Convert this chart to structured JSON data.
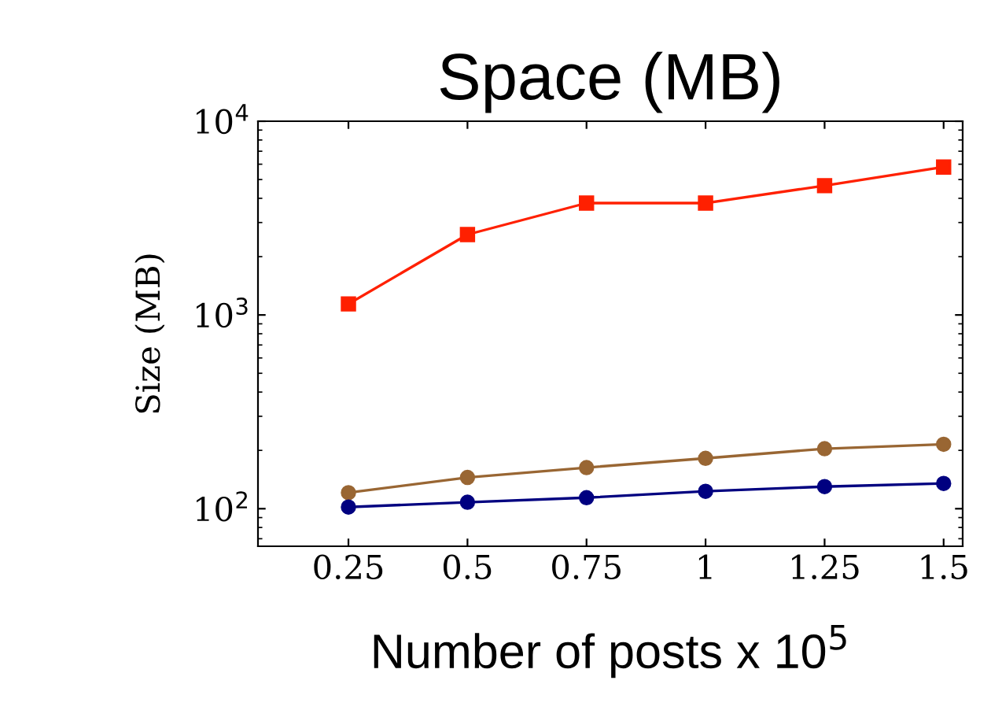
{
  "chart_data": {
    "type": "line",
    "title": "Space (MB)",
    "xlabel": "Number of posts x 10$^{5}$",
    "ylabel": "Size (MB)",
    "x": [
      0.25,
      0.5,
      0.75,
      1,
      1.25,
      1.5
    ],
    "series": [
      {
        "color": "#ff2000",
        "marker": "square",
        "values": [
          1140,
          2600,
          3780,
          3780,
          4650,
          5800
        ]
      },
      {
        "color": "#996633",
        "marker": "circle",
        "values": [
          121,
          145,
          163,
          182,
          204,
          215
        ]
      },
      {
        "color": "#000080",
        "marker": "circle",
        "values": [
          102,
          108,
          114,
          123,
          130,
          135
        ]
      }
    ],
    "log": "y",
    "xlim": [
      0.06,
      1.54
    ],
    "ylim": [
      64,
      10000
    ],
    "xticks": [
      0.25,
      0.5,
      0.75,
      1,
      1.25,
      1.5
    ],
    "yticks": [
      {
        "value": 100,
        "label": "10$^{2}$"
      },
      {
        "value": 1000,
        "label": "10$^{3}$"
      },
      {
        "value": 10000,
        "label": "10$^{4}$"
      }
    ],
    "grid": false,
    "legend": false,
    "line_style": "solid"
  }
}
